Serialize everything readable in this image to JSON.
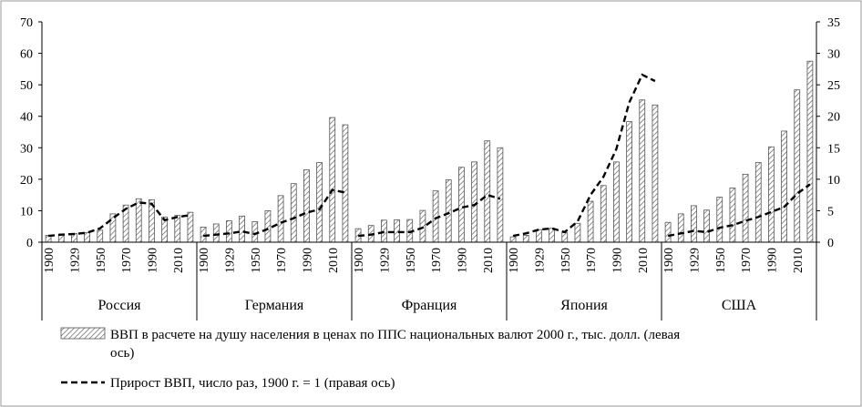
{
  "chart_data": {
    "type": "bar",
    "title": "",
    "left_axis": {
      "min": 0,
      "max": 70,
      "step": 10
    },
    "right_axis": {
      "min": 0,
      "max": 35,
      "step": 5
    },
    "groups": [
      {
        "name": "Россия",
        "years": [
          "1900",
          "",
          "1929",
          "",
          "1950",
          "",
          "1970",
          "",
          "1990",
          "",
          "2010",
          ""
        ],
        "gdp": [
          2.2,
          2.6,
          2.8,
          3.0,
          3.8,
          9.0,
          11.8,
          13.8,
          13.5,
          8.0,
          8.5,
          9.5
        ],
        "growth": [
          1.0,
          1.2,
          1.3,
          1.5,
          2.2,
          3.8,
          5.3,
          6.3,
          6.1,
          3.5,
          4.0,
          4.3
        ]
      },
      {
        "name": "Германия",
        "years": [
          "1900",
          "",
          "1929",
          "",
          "1950",
          "",
          "1970",
          "",
          "1990",
          "",
          "2010",
          ""
        ],
        "gdp": [
          4.8,
          5.8,
          6.8,
          8.3,
          6.5,
          10.0,
          14.8,
          18.6,
          23.0,
          25.3,
          39.6,
          37.3
        ],
        "growth": [
          1.0,
          1.2,
          1.4,
          1.7,
          1.3,
          2.1,
          3.1,
          3.8,
          4.7,
          5.2,
          8.3,
          7.9
        ]
      },
      {
        "name": "Франция",
        "years": [
          "1900",
          "",
          "1929",
          "",
          "1950",
          "",
          "1970",
          "",
          "1990",
          "",
          "2010",
          ""
        ],
        "gdp": [
          4.3,
          5.3,
          7.0,
          7.1,
          7.2,
          10.1,
          16.3,
          19.8,
          23.8,
          25.5,
          32.2,
          30.0
        ],
        "growth": [
          1.0,
          1.2,
          1.6,
          1.6,
          1.6,
          2.3,
          3.8,
          4.6,
          5.5,
          5.9,
          7.5,
          6.9
        ]
      },
      {
        "name": "Япония",
        "years": [
          "1900",
          "",
          "1929",
          "",
          "1950",
          "",
          "1970",
          "",
          "1990",
          "",
          "2010",
          ""
        ],
        "gdp": [
          1.7,
          2.2,
          4.0,
          4.4,
          3.0,
          6.0,
          13.0,
          18.0,
          25.5,
          38.3,
          45.2,
          43.6
        ],
        "growth": [
          1.0,
          1.4,
          2.0,
          2.2,
          1.6,
          3.3,
          7.5,
          10.4,
          14.8,
          22.2,
          26.6,
          25.6
        ]
      },
      {
        "name": "США",
        "years": [
          "1900",
          "",
          "1929",
          "",
          "1950",
          "",
          "1970",
          "",
          "1990",
          "",
          "2010",
          ""
        ],
        "gdp": [
          6.3,
          9.0,
          11.6,
          10.2,
          14.3,
          17.2,
          21.6,
          25.3,
          30.3,
          35.3,
          48.4,
          57.5
        ],
        "growth": [
          1.0,
          1.4,
          1.8,
          1.6,
          2.3,
          2.7,
          3.4,
          4.0,
          4.8,
          5.6,
          7.7,
          9.2
        ]
      }
    ],
    "legend": [
      {
        "label": "ВВП в расчете на душу населения в ценах по ППС национальных валют 2000 г.,  тыс. долл. (левая",
        "label_cont": "ось)",
        "kind": "bar"
      },
      {
        "label": "Прирост ВВП, число раз, 1900 г. = 1 (правая ось)",
        "kind": "line"
      }
    ]
  }
}
